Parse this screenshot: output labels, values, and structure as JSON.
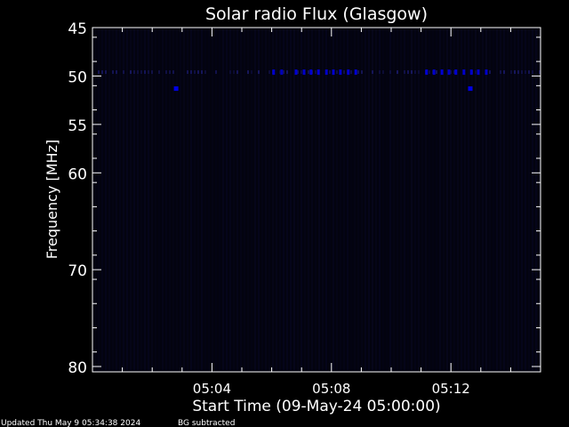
{
  "chart_data": {
    "type": "heatmap",
    "title": "Solar radio Flux (Glasgow)",
    "xlabel": "Start Time (09-May-24 05:00:00)",
    "ylabel": "Frequency [MHz]",
    "xlim": [
      "05:00:00",
      "05:15:00"
    ],
    "ylim": [
      45,
      80
    ],
    "y_inverted": true,
    "x_ticks": [
      "05:04",
      "05:08",
      "05:12"
    ],
    "y_ticks": [
      45,
      50,
      55,
      60,
      70,
      80
    ],
    "colormap": {
      "low": "#000008",
      "high": "#0000ff"
    },
    "features": [
      {
        "time": "05:02:48",
        "freq": 51.3,
        "intensity": 0.85
      },
      {
        "time": "05:12:39",
        "freq": 51.3,
        "intensity": 0.85
      },
      {
        "time": "05:06:04",
        "freq": 49.6,
        "intensity": 0.7
      },
      {
        "time": "05:06:20",
        "freq": 49.6,
        "intensity": 0.6
      },
      {
        "time": "05:06:49",
        "freq": 49.6,
        "intensity": 0.75
      },
      {
        "time": "05:07:05",
        "freq": 49.6,
        "intensity": 0.7
      },
      {
        "time": "05:07:19",
        "freq": 49.6,
        "intensity": 0.75
      },
      {
        "time": "05:07:34",
        "freq": 49.6,
        "intensity": 0.75
      },
      {
        "time": "05:07:50",
        "freq": 49.6,
        "intensity": 0.7
      },
      {
        "time": "05:08:04",
        "freq": 49.6,
        "intensity": 0.75
      },
      {
        "time": "05:08:18",
        "freq": 49.6,
        "intensity": 0.7
      },
      {
        "time": "05:08:34",
        "freq": 49.6,
        "intensity": 0.7
      },
      {
        "time": "05:08:49",
        "freq": 49.6,
        "intensity": 0.75
      },
      {
        "time": "05:11:11",
        "freq": 49.6,
        "intensity": 0.75
      },
      {
        "time": "05:11:26",
        "freq": 49.6,
        "intensity": 0.7
      },
      {
        "time": "05:11:42",
        "freq": 49.6,
        "intensity": 0.75
      },
      {
        "time": "05:11:56",
        "freq": 49.6,
        "intensity": 0.65
      },
      {
        "time": "05:12:10",
        "freq": 49.6,
        "intensity": 0.75
      },
      {
        "time": "05:12:26",
        "freq": 49.6,
        "intensity": 0.7
      },
      {
        "time": "05:12:41",
        "freq": 49.6,
        "intensity": 0.7
      },
      {
        "time": "05:12:55",
        "freq": 49.6,
        "intensity": 0.7
      },
      {
        "time": "05:13:11",
        "freq": 49.6,
        "intensity": 0.7
      }
    ]
  },
  "footer": {
    "updated": "Updated Thu May  9 05:34:38 2024",
    "note": "BG subtracted"
  }
}
